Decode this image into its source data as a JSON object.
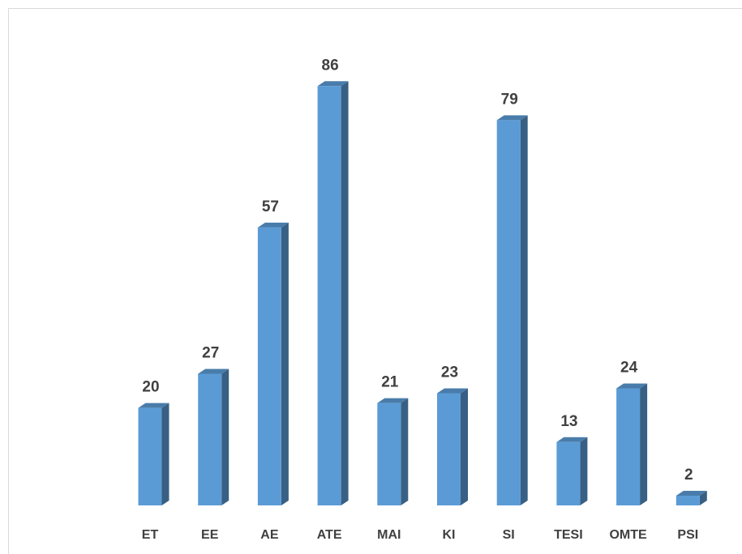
{
  "chart_data": {
    "type": "bar",
    "categories": [
      "ET",
      "EE",
      "AE",
      "ATE",
      "MAI",
      "KI",
      "SI",
      "TESI",
      "OMTE",
      "PSI"
    ],
    "values": [
      20,
      27,
      57,
      86,
      21,
      23,
      79,
      13,
      24,
      2
    ],
    "color": "#5b9bd5"
  }
}
